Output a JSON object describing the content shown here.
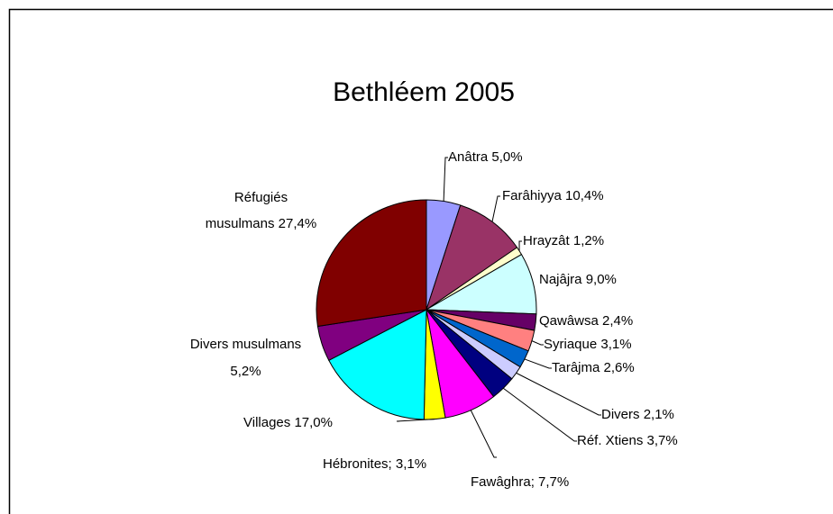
{
  "chart_data": {
    "type": "pie",
    "title": "Bethléem 2005",
    "categories": [
      "Anâtra",
      "Farâhiyya",
      "Hrayzât",
      "Najâjra",
      "Qawâwsa",
      "Syriaque",
      "Tarâjma",
      "Divers",
      "Réf. Xtiens",
      "Fawâghra;",
      "Hébronites;",
      "Villages",
      "Divers musulmans",
      "Réfugiés musulmans"
    ],
    "values": [
      5.0,
      10.4,
      1.2,
      9.0,
      2.4,
      3.1,
      2.6,
      2.1,
      3.7,
      7.7,
      3.1,
      17.0,
      5.2,
      27.4
    ],
    "value_labels": [
      "5,0%",
      "10,4%",
      "1,2%",
      "9,0%",
      "2,4%",
      "3,1%",
      "2,6%",
      "2,1%",
      "3,7%",
      "7,7%",
      "3,1%",
      "17,0%",
      "5,2%",
      "27,4%"
    ],
    "colors": [
      "#9999ff",
      "#993366",
      "#ffffcc",
      "#ccffff",
      "#660066",
      "#ff8080",
      "#0066cc",
      "#ccccff",
      "#000080",
      "#ff00ff",
      "#ffff00",
      "#00ffff",
      "#800080",
      "#800000"
    ]
  }
}
